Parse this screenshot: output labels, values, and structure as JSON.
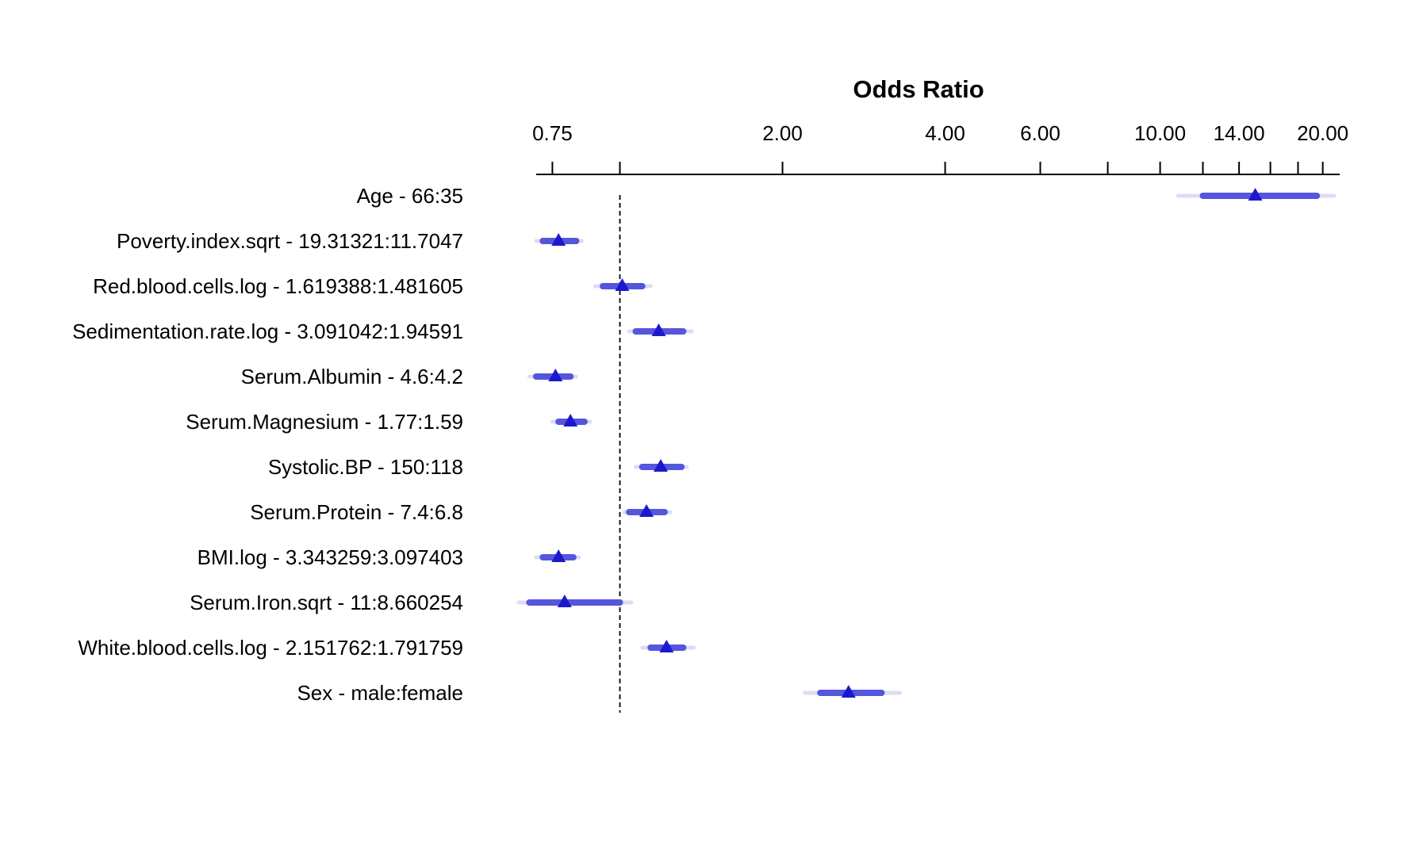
{
  "chart_data": {
    "type": "forest",
    "title": "Odds Ratio",
    "axis": {
      "scale": "log",
      "domain": [
        0.7,
        21.5
      ],
      "tick_labels": [
        "0.75",
        "2.00",
        "4.00",
        "6.00",
        "10.00",
        "14.00",
        "20.00"
      ],
      "tick_values": [
        0.75,
        2,
        4,
        6,
        10,
        14,
        20
      ],
      "minor_ticks": [
        1,
        8,
        12,
        16,
        18
      ],
      "reference_line": 1
    },
    "rows": [
      {
        "label": "Age - 66:35",
        "or": 15.0,
        "ci_inner": [
          12.0,
          19.5
        ],
        "ci_outer": [
          10.8,
          21.0
        ]
      },
      {
        "label": "Poverty.index.sqrt - 19.31321:11.7047",
        "or": 0.77,
        "ci_inner": [
          0.72,
          0.83
        ],
        "ci_outer": [
          0.7,
          0.85
        ]
      },
      {
        "label": "Red.blood.cells.log - 1.619388:1.481605",
        "or": 1.01,
        "ci_inner": [
          0.93,
          1.1
        ],
        "ci_outer": [
          0.9,
          1.14
        ]
      },
      {
        "label": "Sedimentation.rate.log - 3.091042:1.94591",
        "or": 1.18,
        "ci_inner": [
          1.07,
          1.31
        ],
        "ci_outer": [
          1.04,
          1.36
        ]
      },
      {
        "label": "Serum.Albumin - 4.6:4.2",
        "or": 0.76,
        "ci_inner": [
          0.7,
          0.81
        ],
        "ci_outer": [
          0.68,
          0.83
        ]
      },
      {
        "label": "Serum.Magnesium - 1.77:1.59",
        "or": 0.81,
        "ci_inner": [
          0.77,
          0.86
        ],
        "ci_outer": [
          0.75,
          0.88
        ]
      },
      {
        "label": "Systolic.BP - 150:118",
        "or": 1.19,
        "ci_inner": [
          1.1,
          1.3
        ],
        "ci_outer": [
          1.07,
          1.33
        ]
      },
      {
        "label": "Serum.Protein - 7.4:6.8",
        "or": 1.12,
        "ci_inner": [
          1.04,
          1.21
        ],
        "ci_outer": [
          1.02,
          1.24
        ]
      },
      {
        "label": "BMI.log - 3.343259:3.097403",
        "or": 0.77,
        "ci_inner": [
          0.72,
          0.82
        ],
        "ci_outer": [
          0.7,
          0.84
        ]
      },
      {
        "label": "Serum.Iron.sqrt - 11:8.660254",
        "or": 0.79,
        "ci_inner": [
          0.68,
          1.0
        ],
        "ci_outer": [
          0.65,
          1.05
        ]
      },
      {
        "label": "White.blood.cells.log - 2.151762:1.791759",
        "or": 1.22,
        "ci_inner": [
          1.14,
          1.31
        ],
        "ci_outer": [
          1.1,
          1.37
        ]
      },
      {
        "label": "Sex - male:female",
        "or": 2.65,
        "ci_inner": [
          2.35,
          3.05
        ],
        "ci_outer": [
          2.2,
          3.3
        ]
      }
    ],
    "colors": {
      "point": "#1a1acc",
      "ci_inner": "#5555dd",
      "ci_outer": "#dcdcf5",
      "axis": "#000000",
      "reference": "#000000"
    }
  }
}
